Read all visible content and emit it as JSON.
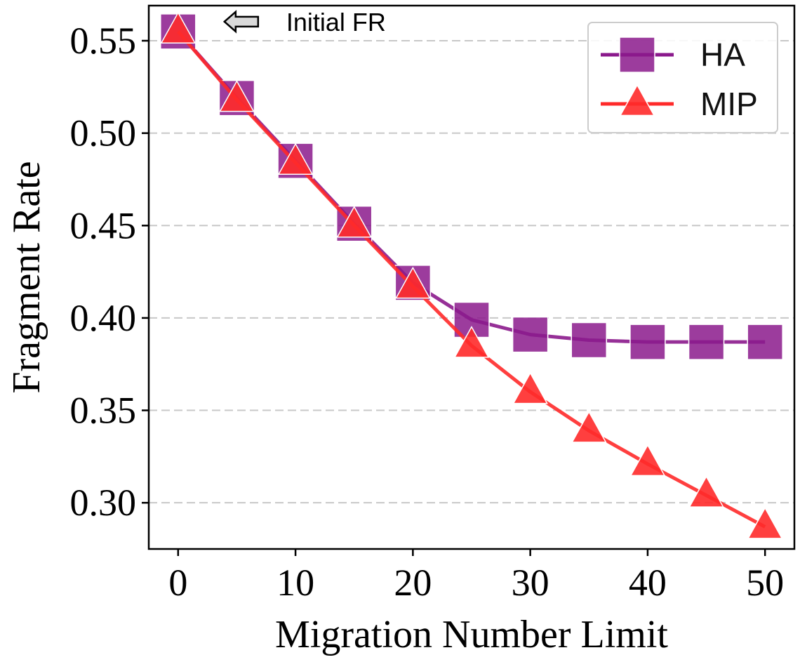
{
  "chart_data": {
    "type": "line",
    "xlabel": "Migration Number Limit",
    "ylabel": "Fragment Rate",
    "xlim": [
      -2.5,
      52.5
    ],
    "ylim": [
      0.275,
      0.569
    ],
    "xticks": [
      0,
      10,
      20,
      30,
      40,
      50
    ],
    "yticks": [
      0.3,
      0.35,
      0.4,
      0.45,
      0.5,
      0.55
    ],
    "xtick_labels": [
      "0",
      "10",
      "20",
      "30",
      "40",
      "50"
    ],
    "ytick_labels": [
      "0.30",
      "0.35",
      "0.40",
      "0.45",
      "0.50",
      "0.55"
    ],
    "grid": "horizontal-dashed",
    "legend_position": "top-right",
    "x": [
      0,
      5,
      10,
      15,
      20,
      25,
      30,
      35,
      40,
      45,
      50
    ],
    "series": [
      {
        "name": "HA",
        "marker": "square",
        "color": "#8B1A8C",
        "values": [
          0.555,
          0.519,
          0.485,
          0.451,
          0.419,
          0.399,
          0.391,
          0.388,
          0.387,
          0.387,
          0.387
        ]
      },
      {
        "name": "MIP",
        "marker": "triangle",
        "color": "#FF2A2A",
        "values": [
          0.555,
          0.518,
          0.484,
          0.45,
          0.417,
          0.385,
          0.36,
          0.339,
          0.321,
          0.304,
          0.287
        ]
      }
    ],
    "annotations": [
      {
        "text": "Initial FR",
        "x": 0,
        "y": 0.555,
        "arrow": "left"
      }
    ]
  }
}
